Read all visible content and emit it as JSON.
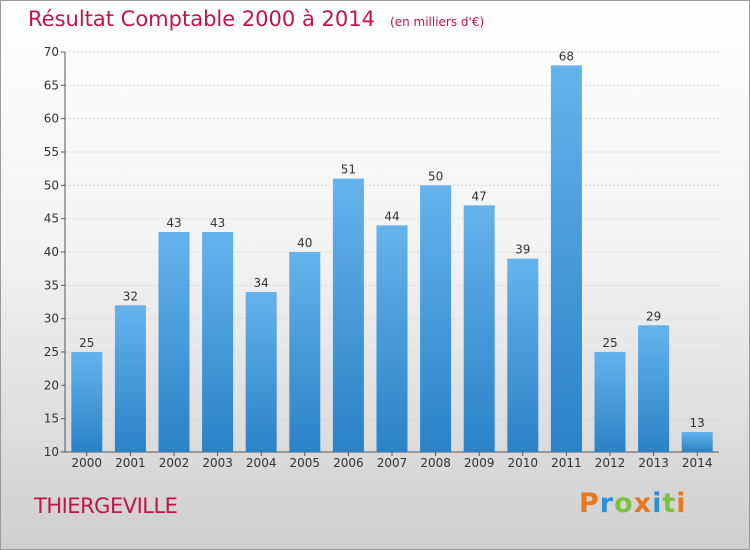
{
  "title": "Résultat Comptable 2000 à 2014",
  "subtitle": "(en milliers d'€)",
  "town": "THIERGEVILLE",
  "brand": {
    "letters": [
      "P",
      "r",
      "o",
      "x",
      "i",
      "t",
      "i"
    ],
    "colors": [
      "#e8771e",
      "#2f8fd8",
      "#7cc242",
      "#e8771e",
      "#2f8fd8",
      "#7cc242",
      "#e8771e"
    ]
  },
  "colors": {
    "bar_light": "#64b3ec",
    "bar_dark": "#2a82c7",
    "title": "#c0144a",
    "grid": "#d8d8d8"
  },
  "chart_data": {
    "type": "bar",
    "title": "Résultat Comptable 2000 à 2014",
    "categories": [
      "2000",
      "2001",
      "2002",
      "2003",
      "2004",
      "2005",
      "2006",
      "2007",
      "2008",
      "2009",
      "2010",
      "2011",
      "2012",
      "2013",
      "2014"
    ],
    "values": [
      25,
      32,
      43,
      43,
      34,
      40,
      51,
      44,
      50,
      47,
      39,
      68,
      25,
      29,
      13
    ],
    "ylim": [
      10,
      70
    ],
    "yticks": [
      10,
      15,
      20,
      25,
      30,
      35,
      40,
      45,
      50,
      55,
      60,
      65,
      70
    ],
    "grid": true,
    "xlabel": "",
    "ylabel": ""
  }
}
